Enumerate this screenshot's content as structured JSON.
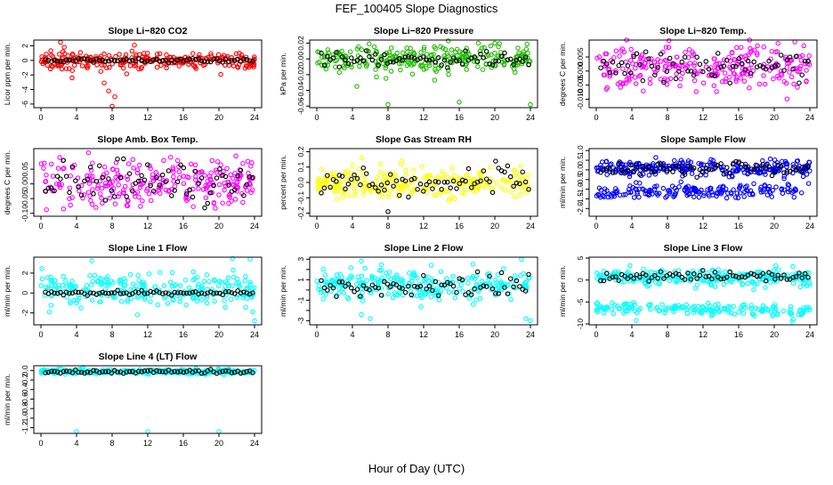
{
  "figure": {
    "title": "FEF_100405  Slope Diagnostics",
    "xlabel": "Hour of Day (UTC)"
  },
  "chart_data": [
    {
      "type": "scatter",
      "title": "Slope Li−820 CO2",
      "ylabel": "Licor ppm per min.",
      "color": "#ff0000",
      "ylim": [
        -6.5,
        2.8
      ],
      "yticks": [
        -6,
        -4,
        -2,
        0,
        2
      ],
      "xlim": [
        -0.8,
        24.8
      ],
      "xticks": [
        0,
        4,
        8,
        12,
        16,
        20,
        24
      ],
      "series": [
        {
          "name": "all",
          "center": [
            0,
            0
          ],
          "spread": 0.55,
          "outliers": [
            [
              2.2,
              2.5
            ],
            [
              8.0,
              -6.3
            ],
            [
              7.6,
              -4.2
            ],
            [
              3.5,
              -2.4
            ],
            [
              10.5,
              2.1
            ],
            [
              8.3,
              -5.0
            ],
            [
              7.1,
              -3.1
            ]
          ]
        },
        {
          "name": "selected",
          "center": [
            0,
            0
          ],
          "spread": 0.15
        }
      ]
    },
    {
      "type": "scatter",
      "title": "Slope Li−820 Pressure",
      "ylabel": "kPa per min.",
      "color": "#22bb00",
      "ylim": [
        -0.062,
        0.024
      ],
      "yticks": [
        -0.06,
        -0.04,
        -0.02,
        0.0,
        0.02
      ],
      "yticklabels": [
        "-0.06",
        "-0.04",
        "-0.02",
        "0.00",
        "0.02"
      ],
      "xlim": [
        -0.8,
        24.8
      ],
      "xticks": [
        0,
        4,
        8,
        12,
        16,
        20,
        24
      ],
      "series": [
        {
          "name": "all",
          "center": [
            0,
            0
          ],
          "spread": 0.009,
          "outliers": [
            [
              8.0,
              -0.058
            ],
            [
              16.0,
              -0.055
            ],
            [
              24.0,
              -0.058
            ],
            [
              20.0,
              0.02
            ],
            [
              4.5,
              -0.035
            ]
          ]
        },
        {
          "name": "selected",
          "center": [
            0,
            0
          ],
          "spread": 0.005
        }
      ]
    },
    {
      "type": "scatter",
      "title": "Slope Li−820 Temp.",
      "ylabel": "degrees C per min.",
      "color": "#ff00ff",
      "ylim": [
        -0.013,
        0.011
      ],
      "yticks": [
        -0.01,
        -0.005,
        0.0,
        0.005
      ],
      "yticklabels": [
        "-0.010",
        "-0.005",
        "0.000",
        "0.005"
      ],
      "xlim": [
        -0.8,
        24.8
      ],
      "xticks": [
        0,
        4,
        8,
        12,
        16,
        20,
        24
      ],
      "series": [
        {
          "name": "all",
          "center": [
            0.0015,
            0.0015
          ],
          "spread": 0.004
        },
        {
          "name": "selected",
          "center": [
            0.001,
            0.001
          ],
          "spread": 0.003
        }
      ]
    },
    {
      "type": "scatter",
      "title": "Slope Amb. Box Temp.",
      "ylabel": "degrees C per min.",
      "color": "#ff00ff",
      "ylim": [
        -0.11,
        0.12
      ],
      "yticks": [
        -0.1,
        -0.05,
        0.0,
        0.05
      ],
      "yticklabels": [
        "-0.10",
        "-0.05",
        "0.00",
        "0.05"
      ],
      "xlim": [
        -0.8,
        24.8
      ],
      "xticks": [
        0,
        4,
        8,
        12,
        16,
        20,
        24
      ],
      "series": [
        {
          "name": "all",
          "center": [
            0,
            0
          ],
          "spread": 0.04
        },
        {
          "name": "selected",
          "center": [
            0,
            0
          ],
          "spread": 0.035
        }
      ]
    },
    {
      "type": "scatter",
      "title": "Slope Gas Stream RH",
      "ylabel": "percent per min.",
      "color": "#ffff00",
      "ylim": [
        -0.22,
        0.22
      ],
      "yticks": [
        -0.2,
        -0.1,
        0.0,
        0.1,
        0.2
      ],
      "yticklabels": [
        "-0.2",
        "-0.1",
        "0.0",
        "0.1",
        "0.2"
      ],
      "xlim": [
        -0.8,
        24.8
      ],
      "xticks": [
        0,
        4,
        8,
        12,
        16,
        20,
        24
      ],
      "series": [
        {
          "name": "all",
          "center": [
            0,
            0
          ],
          "spread": 0.05
        },
        {
          "name": "selected",
          "center": [
            0,
            0
          ],
          "spread": 0.05,
          "outliers": [
            [
              8.0,
              -0.19
            ]
          ]
        }
      ]
    },
    {
      "type": "scatter",
      "title": "Slope Sample Flow",
      "ylabel": "ml/min per min.",
      "color": "#0000ff",
      "ylim": [
        -2.4,
        1.1
      ],
      "yticks": [
        -2.0,
        -1.5,
        -1.0,
        -0.5,
        0.0,
        0.5,
        1.0
      ],
      "yticklabels": [
        "-2.0",
        "-1.5",
        "-1.0",
        "-0.5",
        "0.0",
        "0.5",
        "1.0"
      ],
      "xlim": [
        -0.8,
        24.8
      ],
      "xticks": [
        0,
        4,
        8,
        12,
        16,
        20,
        24
      ],
      "series": [
        {
          "name": "all",
          "center": [
            0.1,
            0.1
          ],
          "spread": 0.2,
          "band2": [
            -1.2,
            -1.0
          ],
          "band2_spread": 0.18
        },
        {
          "name": "selected",
          "center": [
            0.1,
            0.1
          ],
          "spread": 0.18
        }
      ]
    },
    {
      "type": "scatter",
      "title": "Slope Line 1 Flow",
      "ylabel": "ml/min per min.",
      "color": "#00ffff",
      "ylim": [
        -3.2,
        3.6
      ],
      "yticks": [
        -2,
        0,
        2
      ],
      "xlim": [
        -0.8,
        24.8
      ],
      "xticks": [
        0,
        4,
        8,
        12,
        16,
        20,
        24
      ],
      "series": [
        {
          "name": "all",
          "center": [
            0.3,
            0.3
          ],
          "spread": 0.8,
          "outliers": [
            [
              23.5,
              3.4
            ],
            [
              24.0,
              -2.8
            ],
            [
              23.8,
              -1.9
            ],
            [
              4.5,
              -1.5
            ]
          ]
        },
        {
          "name": "selected",
          "center": [
            0,
            0
          ],
          "spread": 0.1
        }
      ]
    },
    {
      "type": "scatter",
      "title": "Slope Line 2 Flow",
      "ylabel": "ml/min per min.",
      "color": "#00ffff",
      "ylim": [
        -3.4,
        3.2
      ],
      "yticks": [
        -3,
        -1,
        1,
        3
      ],
      "yticks_minor": [
        -2,
        0,
        2
      ],
      "xlim": [
        -0.8,
        24.8
      ],
      "xticks": [
        0,
        4,
        8,
        12,
        16,
        20,
        24
      ],
      "series": [
        {
          "name": "all",
          "center": [
            0.5,
            0.5
          ],
          "spread": 0.7,
          "outliers": [
            [
              5.0,
              2.8
            ],
            [
              23.0,
              3.0
            ],
            [
              24.0,
              -3.0
            ],
            [
              5.0,
              -2.4
            ],
            [
              6.0,
              -2.8
            ],
            [
              23.5,
              -2.8
            ]
          ]
        },
        {
          "name": "selected",
          "center": [
            0.3,
            0.3
          ],
          "spread": 0.55
        }
      ]
    },
    {
      "type": "scatter",
      "title": "Slope Line 3 Flow",
      "ylabel": "ml/min per min.",
      "color": "#00ffff",
      "ylim": [
        -10.2,
        5.2
      ],
      "yticks": [
        -10,
        -5,
        0,
        5
      ],
      "xlim": [
        -0.8,
        24.8
      ],
      "xticks": [
        0,
        4,
        8,
        12,
        16,
        20,
        24
      ],
      "series": [
        {
          "name": "all",
          "center": [
            0.8,
            0.5
          ],
          "spread": 0.9,
          "band2": [
            -6.3,
            -7.2
          ],
          "band2_spread": 0.7,
          "outliers": [
            [
              4.5,
              -9.2
            ],
            [
              22.0,
              -9.4
            ]
          ]
        },
        {
          "name": "selected",
          "center": [
            0.8,
            0.8
          ],
          "spread": 0.6
        }
      ]
    },
    {
      "type": "scatter",
      "title": "Slope Line 4 (LT) Flow",
      "ylabel": "ml/min per min.",
      "color": "#00ffff",
      "ylim": [
        -1.32,
        0.1
      ],
      "yticks": [
        -1.2,
        -1.0,
        -0.8,
        -0.6,
        -0.4,
        -0.2,
        0.0
      ],
      "yticklabels": [
        "-1.2",
        "-1.0",
        "-0.8",
        "-0.6",
        "-0.4",
        "-0.2",
        "0.0"
      ],
      "xlim": [
        -0.8,
        24.8
      ],
      "xticks": [
        0,
        4,
        8,
        12,
        16,
        20,
        24
      ],
      "series": [
        {
          "name": "all",
          "center": [
            -0.02,
            -0.02
          ],
          "spread": 0.025,
          "outliers": [
            [
              4.0,
              -1.28
            ],
            [
              12.0,
              -1.28
            ],
            [
              20.0,
              -1.28
            ]
          ]
        },
        {
          "name": "selected",
          "center": [
            -0.03,
            -0.03
          ],
          "spread": 0.02
        }
      ]
    }
  ]
}
